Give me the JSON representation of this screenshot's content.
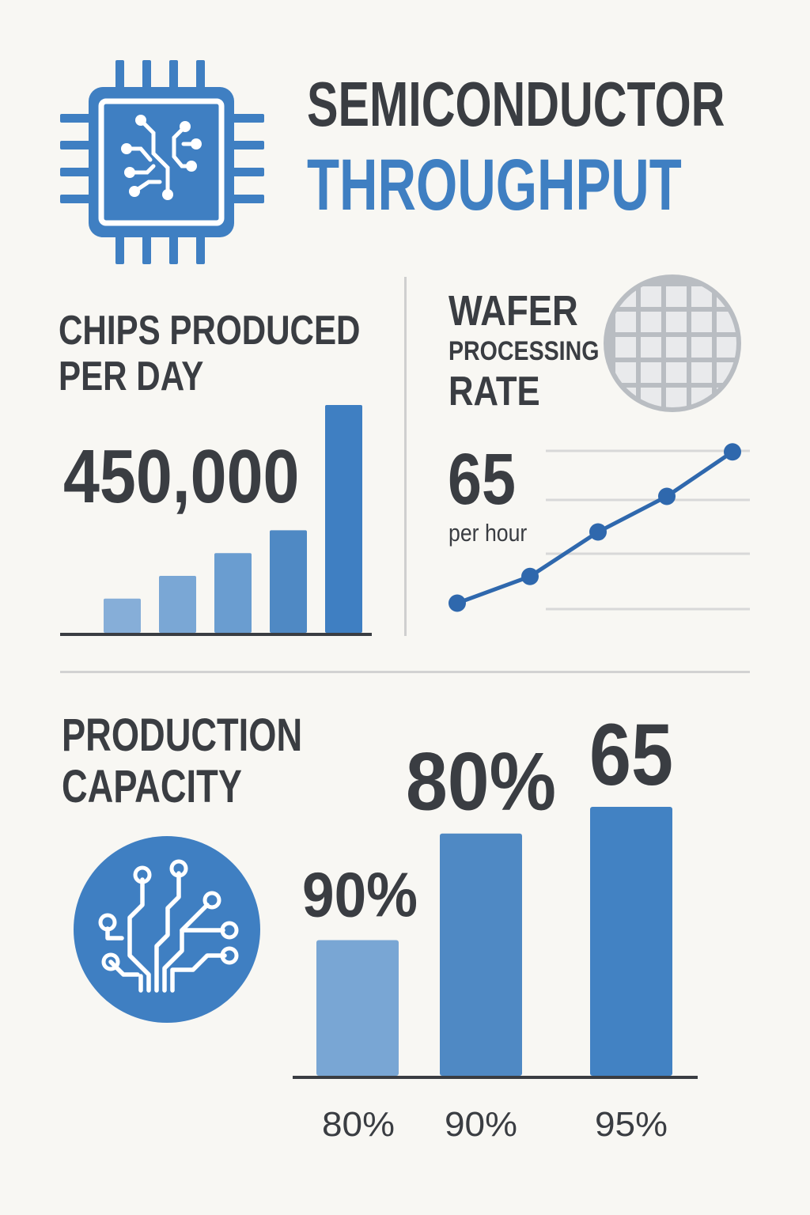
{
  "title": {
    "line1": "SEMICONDUCTOR",
    "line2": "THROUGHPUT"
  },
  "icons": {
    "header": "microchip-icon",
    "wafer": "wafer-icon",
    "capacity": "circuit-tree-icon"
  },
  "colors": {
    "text": "#3a3d42",
    "accent": "#3f7fc2",
    "line": "#2f68ad",
    "grid": "#d8d8d8",
    "divider": "#cfcfcf",
    "wafer": "#b9bdc2",
    "background": "#f8f7f3"
  },
  "chips": {
    "heading_line1": "CHIPS PRODUCED",
    "heading_line2": "PER DAY",
    "value": "450,000"
  },
  "wafer": {
    "heading_line1": "WAFER",
    "heading_line2": "PROCESSING",
    "heading_line3": "RATE",
    "value": "65",
    "unit": "per hour"
  },
  "capacity": {
    "heading_line1": "PRODUCTION",
    "heading_line2": "CAPACITY"
  },
  "chart_data": [
    {
      "type": "bar",
      "title": "",
      "categories": [
        "",
        "",
        "",
        "",
        ""
      ],
      "values": [
        15,
        25,
        35,
        45,
        100
      ],
      "colors": [
        "#86aed8",
        "#7aa7d5",
        "#6a9dd0",
        "#4f89c4",
        "#3f7fc2"
      ],
      "ylim": [
        0,
        100
      ],
      "grid": false
    },
    {
      "type": "line",
      "title": "",
      "x": [
        1,
        2,
        3,
        4,
        5
      ],
      "values": [
        10,
        25,
        50,
        70,
        95
      ],
      "ylim": [
        0,
        100
      ],
      "grid": true
    },
    {
      "type": "bar",
      "title": "",
      "categories": [
        "80%",
        "90%",
        "95%"
      ],
      "values": [
        56,
        100,
        111
      ],
      "data_labels": [
        "90%",
        "80%",
        "65"
      ],
      "colors": [
        "#79a6d4",
        "#4f89c4",
        "#4282c3"
      ],
      "ylim": [
        0,
        111
      ],
      "grid": false
    }
  ]
}
